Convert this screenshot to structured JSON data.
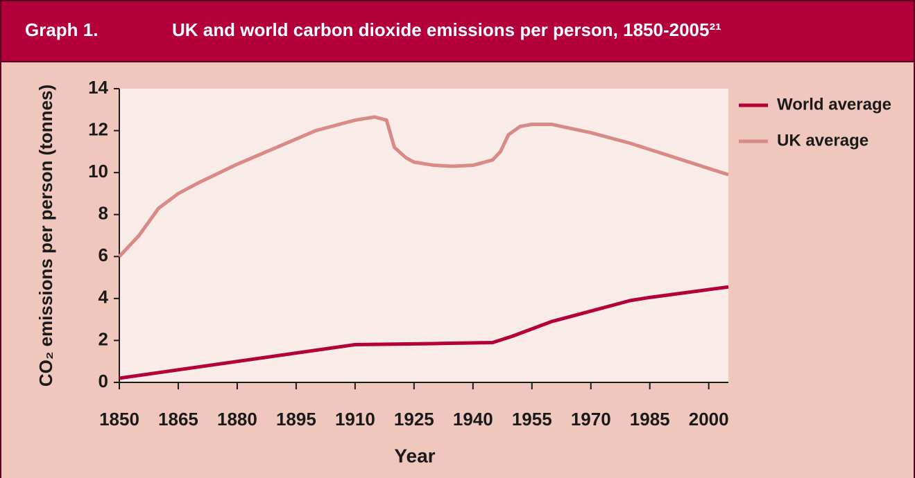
{
  "chart_data": {
    "type": "line",
    "graph_label": "Graph 1.",
    "title": "UK and world carbon dioxide emissions per person, 1850-2005²¹",
    "x_label": "Year",
    "y_label": "CO₂ emissions per person (tonnes)",
    "xlim": [
      1850,
      2005
    ],
    "xticks": [
      1850,
      1865,
      1880,
      1895,
      1910,
      1925,
      1940,
      1955,
      1970,
      1985,
      2000
    ],
    "ylim": [
      0,
      14
    ],
    "yticks": [
      0,
      2,
      4,
      6,
      8,
      10,
      12,
      14
    ],
    "legend": "right",
    "series": [
      {
        "name": "World average",
        "color": "#b3003b",
        "x": [
          1850,
          1910,
          1930,
          1945,
          1950,
          1960,
          1970,
          1980,
          1985,
          2005
        ],
        "values": [
          0.2,
          1.8,
          1.85,
          1.9,
          2.2,
          2.9,
          3.4,
          3.9,
          4.05,
          4.55
        ]
      },
      {
        "name": "UK average",
        "color": "#d98a87",
        "x": [
          1850,
          1855,
          1860,
          1865,
          1870,
          1880,
          1890,
          1900,
          1910,
          1915,
          1918,
          1920,
          1923,
          1925,
          1930,
          1935,
          1940,
          1945,
          1947,
          1949,
          1952,
          1955,
          1960,
          1965,
          1970,
          1980,
          1990,
          2000,
          2005
        ],
        "values": [
          6.0,
          7.0,
          8.3,
          9.0,
          9.5,
          10.4,
          11.2,
          12.0,
          12.5,
          12.65,
          12.5,
          11.2,
          10.7,
          10.5,
          10.35,
          10.3,
          10.35,
          10.6,
          11.0,
          11.8,
          12.2,
          12.3,
          12.3,
          12.1,
          11.9,
          11.4,
          10.8,
          10.2,
          9.9
        ]
      }
    ]
  }
}
